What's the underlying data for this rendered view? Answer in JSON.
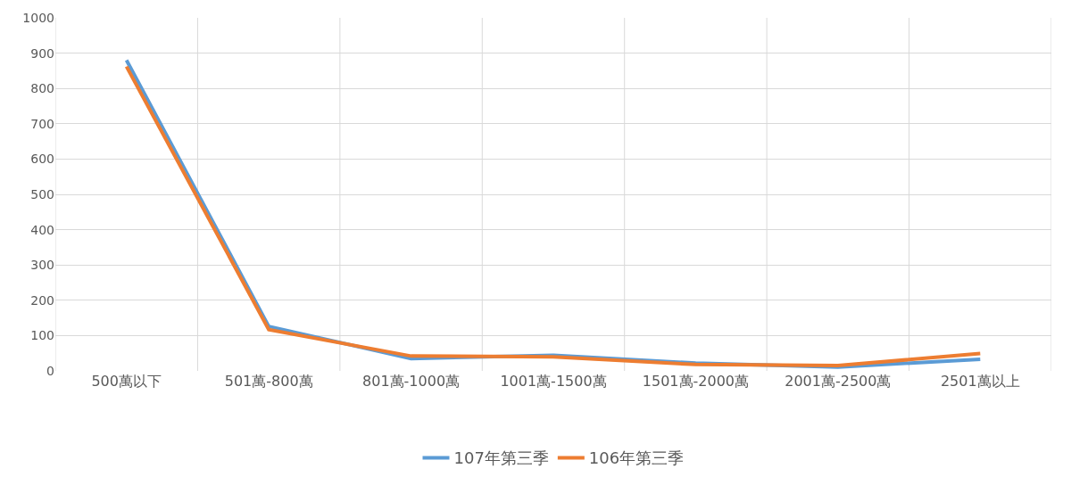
{
  "chart_data": {
    "type": "line",
    "categories": [
      "500萬以下",
      "501萬-800萬",
      "801萬-1000萬",
      "1001萬-1500萬",
      "1501萬-2000萬",
      "2001萬-2500萬",
      "2501萬以上"
    ],
    "series": [
      {
        "name": "107年第三季",
        "color": "#5b9bd5",
        "values": [
          880,
          126,
          35,
          44,
          22,
          11,
          33
        ]
      },
      {
        "name": "106年第三季",
        "color": "#ed7d31",
        "values": [
          862,
          117,
          42,
          40,
          18,
          15,
          49
        ]
      }
    ],
    "ylim": [
      0,
      1000
    ],
    "yticks": [
      0,
      100,
      200,
      300,
      400,
      500,
      600,
      700,
      800,
      900,
      1000
    ],
    "grid": true,
    "legend": "bottom",
    "marker": "none",
    "line_style": "solid"
  }
}
